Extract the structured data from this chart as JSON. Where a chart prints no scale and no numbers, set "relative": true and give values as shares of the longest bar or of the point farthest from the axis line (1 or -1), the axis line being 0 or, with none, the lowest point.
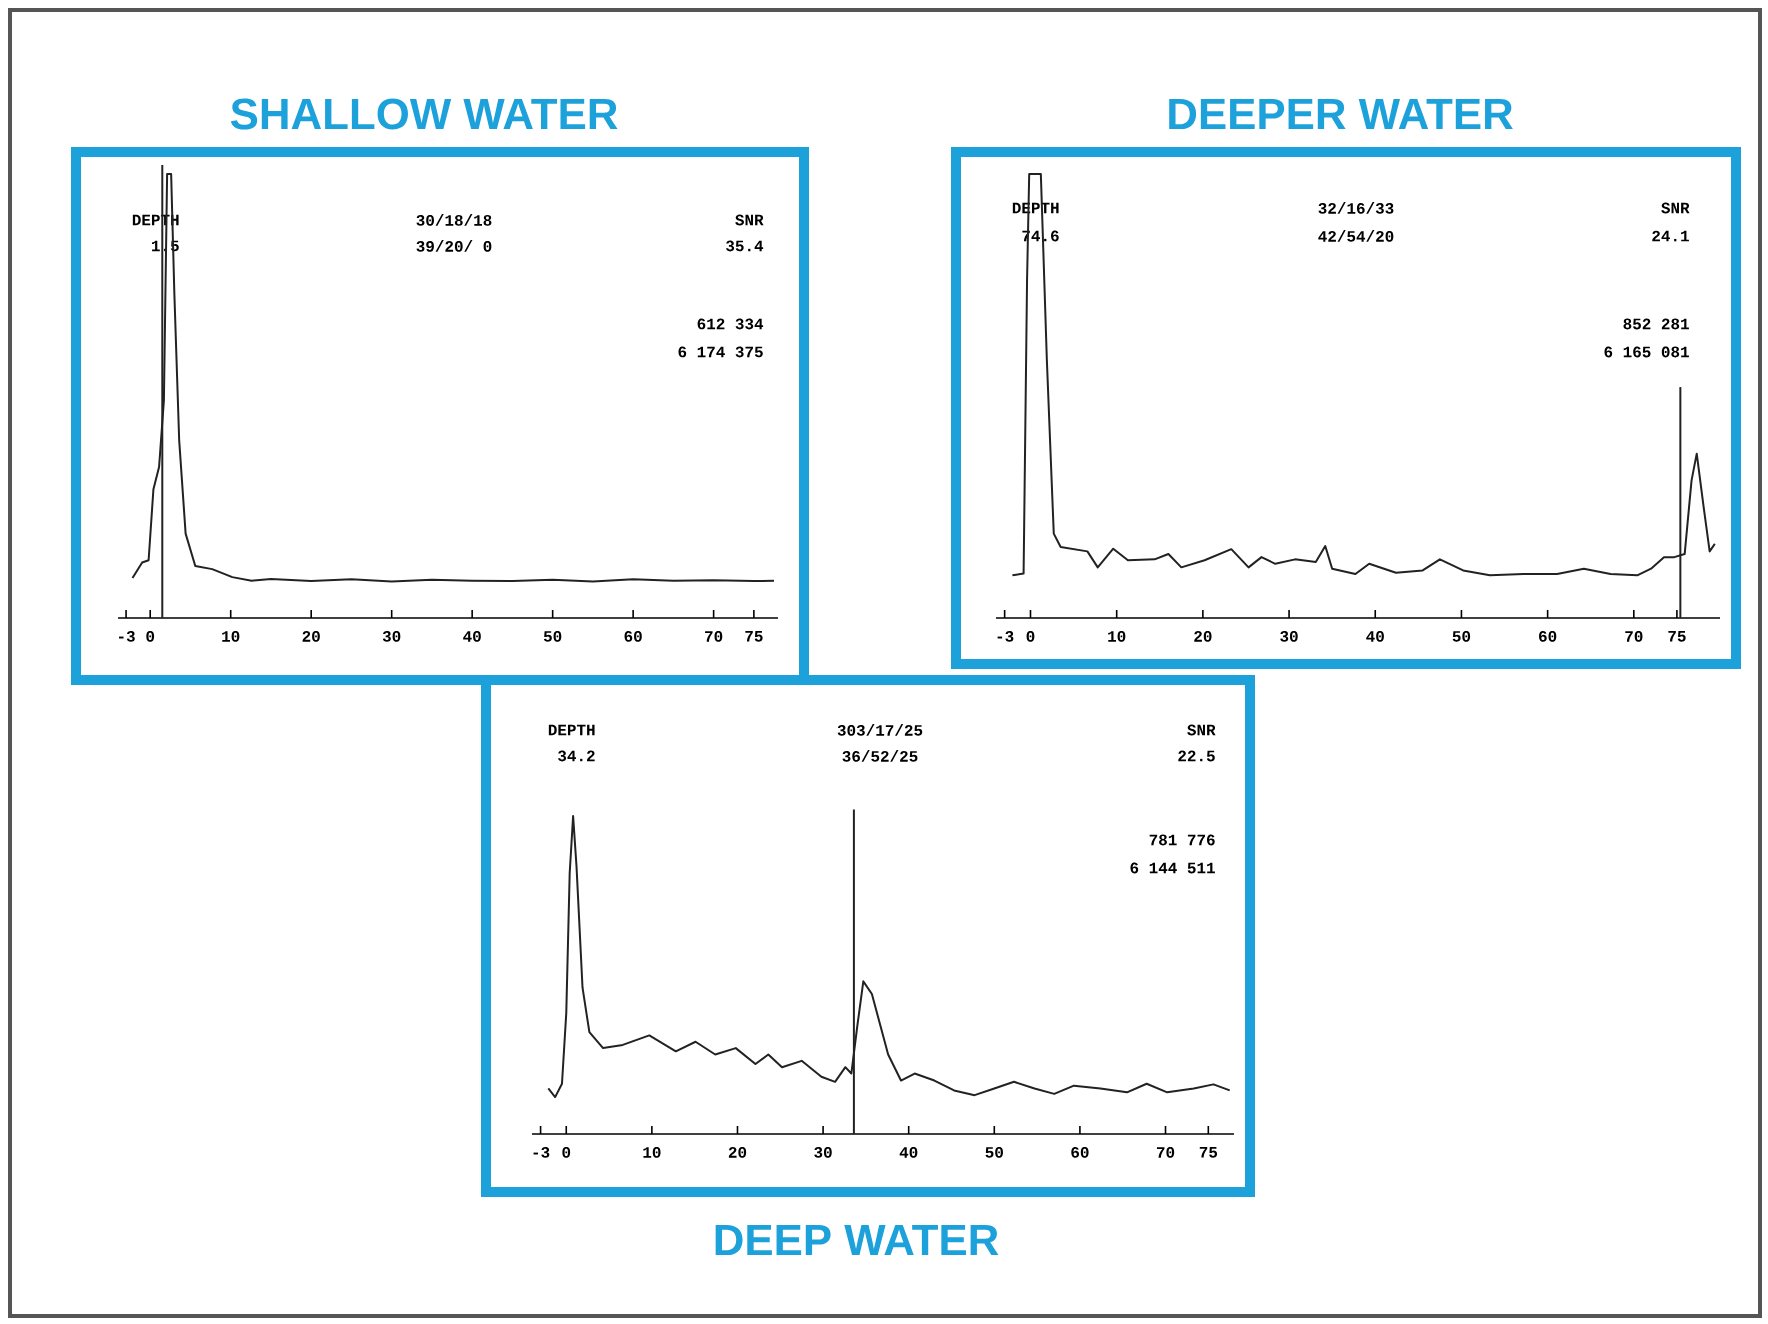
{
  "chart_data": [
    {
      "type": "line",
      "title": "SHALLOW WATER",
      "relative": true,
      "xlim": [
        -4,
        78
      ],
      "xticks": [
        -3,
        0,
        10,
        20,
        30,
        40,
        50,
        60,
        70,
        75
      ],
      "annotations": [
        "DEPTH",
        "1.5",
        "30/18/18",
        "39/20/ 0",
        "SNR",
        "35.4",
        "612 334",
        "6 174 375"
      ],
      "ref_lines": [
        {
          "axis": "x",
          "value": 1.5,
          "color": "#222222"
        }
      ],
      "x": [
        -2.2,
        -1.0,
        -0.2,
        0.4,
        1.1,
        1.7,
        2.1,
        2.6,
        3.0,
        3.6,
        4.4,
        5.6,
        7.7,
        10.2,
        12.6,
        15,
        20,
        25,
        30,
        35,
        40,
        45,
        50,
        55,
        60,
        65,
        70,
        75,
        77.5
      ],
      "series": [
        {
          "color": "#222222",
          "values": [
            0.09,
            0.125,
            0.13,
            0.29,
            0.34,
            0.49,
            1.0,
            1.0,
            0.73,
            0.4,
            0.19,
            0.117,
            0.11,
            0.092,
            0.084,
            0.088,
            0.083,
            0.087,
            0.082,
            0.086,
            0.084,
            0.083,
            0.086,
            0.082,
            0.087,
            0.084,
            0.085,
            0.083,
            0.084
          ]
        }
      ]
    },
    {
      "type": "line",
      "title": "DEEPER WATER",
      "relative": true,
      "xlim": [
        -4,
        80
      ],
      "xticks": [
        -3,
        0,
        10,
        20,
        30,
        40,
        50,
        60,
        70,
        75
      ],
      "annotations": [
        "DEPTH",
        "74.6",
        "32/16/33",
        "42/54/20",
        "SNR",
        "24.1",
        "852 281",
        "6 165 081"
      ],
      "ref_lines": [
        {
          "axis": "x",
          "value": 75.4,
          "color": "#222222"
        }
      ],
      "x": [
        -2.1,
        -0.8,
        -0.4,
        -0.15,
        0.2,
        1.2,
        1.9,
        2.7,
        3.5,
        6.6,
        7.8,
        9.6,
        11.3,
        14.4,
        16.0,
        17.5,
        20.2,
        23.3,
        25.3,
        26.8,
        28.4,
        30.7,
        33.1,
        34.2,
        35.0,
        37.7,
        39.3,
        42.4,
        45.5,
        47.5,
        50.2,
        53.3,
        57.2,
        61.1,
        64.2,
        67.3,
        70.4,
        72.0,
        73.5,
        74.7,
        75.9,
        76.7,
        77.3,
        78.1,
        78.8,
        79.4
      ],
      "series": [
        {
          "color": "#222222",
          "values": [
            0.096,
            0.1,
            0.76,
            1.0,
            1.0,
            1.0,
            0.58,
            0.19,
            0.16,
            0.15,
            0.114,
            0.156,
            0.13,
            0.132,
            0.144,
            0.114,
            0.13,
            0.155,
            0.114,
            0.137,
            0.122,
            0.132,
            0.126,
            0.162,
            0.111,
            0.099,
            0.122,
            0.102,
            0.107,
            0.132,
            0.107,
            0.096,
            0.099,
            0.099,
            0.111,
            0.099,
            0.096,
            0.111,
            0.137,
            0.137,
            0.144,
            0.31,
            0.37,
            0.25,
            0.15,
            0.167
          ]
        }
      ]
    },
    {
      "type": "line",
      "title": "DEEP WATER",
      "relative": true,
      "xlim": [
        -4,
        78
      ],
      "xticks": [
        -3,
        0,
        10,
        20,
        30,
        40,
        50,
        60,
        70,
        75
      ],
      "annotations": [
        "DEPTH",
        "34.2",
        "303/17/25",
        "36/52/25",
        "SNR",
        "22.5",
        "781 776",
        "6 144 511"
      ],
      "ref_lines": [
        {
          "axis": "x",
          "value": 33.6,
          "color": "#222222"
        }
      ],
      "x": [
        -2.1,
        -1.3,
        -0.5,
        0.0,
        0.4,
        0.8,
        1.2,
        1.9,
        2.7,
        4.3,
        6.6,
        9.7,
        12.8,
        15.1,
        17.4,
        19.8,
        22.1,
        23.6,
        25.2,
        27.5,
        29.8,
        31.4,
        32.6,
        33.3,
        34.0,
        34.7,
        35.7,
        37.6,
        39.1,
        40.7,
        43.0,
        45.3,
        47.7,
        50.0,
        52.3,
        54.7,
        57.0,
        59.3,
        62.4,
        65.5,
        67.8,
        70.2,
        73.3,
        75.6,
        77.5
      ],
      "series": [
        {
          "color": "#222222",
          "values": [
            0.143,
            0.116,
            0.158,
            0.38,
            0.82,
            1.0,
            0.84,
            0.46,
            0.32,
            0.27,
            0.28,
            0.31,
            0.26,
            0.29,
            0.25,
            0.27,
            0.22,
            0.25,
            0.21,
            0.23,
            0.18,
            0.164,
            0.21,
            0.19,
            0.34,
            0.48,
            0.44,
            0.25,
            0.168,
            0.19,
            0.168,
            0.137,
            0.122,
            0.143,
            0.164,
            0.143,
            0.126,
            0.152,
            0.143,
            0.131,
            0.158,
            0.131,
            0.143,
            0.156,
            0.137
          ]
        }
      ]
    }
  ]
}
